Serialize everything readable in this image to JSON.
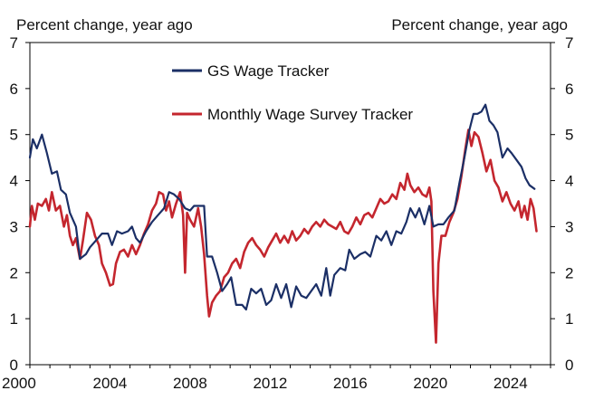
{
  "chart_data": {
    "type": "line",
    "ylabel_left": "Percent change, year ago",
    "ylabel_right": "Percent change, year ago",
    "xlim": [
      2000,
      2026
    ],
    "ylim": [
      0,
      7
    ],
    "xticks": [
      2000,
      2004,
      2008,
      2012,
      2016,
      2020,
      2024
    ],
    "yticks": [
      0,
      1,
      2,
      3,
      4,
      5,
      6,
      7
    ],
    "grid": false,
    "legend_position": "top-left-inside",
    "series": [
      {
        "name": "GS Wage Tracker",
        "color": "#1b2f66",
        "points": [
          [
            2000.0,
            4.5
          ],
          [
            2000.15,
            4.9
          ],
          [
            2000.35,
            4.7
          ],
          [
            2000.6,
            5.0
          ],
          [
            2000.85,
            4.6
          ],
          [
            2001.1,
            4.15
          ],
          [
            2001.35,
            4.2
          ],
          [
            2001.55,
            3.8
          ],
          [
            2001.8,
            3.7
          ],
          [
            2002.0,
            3.3
          ],
          [
            2002.3,
            3.0
          ],
          [
            2002.5,
            2.3
          ],
          [
            2002.8,
            2.4
          ],
          [
            2003.0,
            2.55
          ],
          [
            2003.3,
            2.7
          ],
          [
            2003.6,
            2.85
          ],
          [
            2003.9,
            2.85
          ],
          [
            2004.1,
            2.6
          ],
          [
            2004.35,
            2.9
          ],
          [
            2004.6,
            2.85
          ],
          [
            2004.9,
            2.9
          ],
          [
            2005.1,
            3.0
          ],
          [
            2005.3,
            2.75
          ],
          [
            2005.5,
            2.65
          ],
          [
            2005.8,
            2.9
          ],
          [
            2006.1,
            3.1
          ],
          [
            2006.4,
            3.25
          ],
          [
            2006.7,
            3.4
          ],
          [
            2006.95,
            3.75
          ],
          [
            2007.2,
            3.7
          ],
          [
            2007.45,
            3.6
          ],
          [
            2007.75,
            3.4
          ],
          [
            2008.0,
            3.35
          ],
          [
            2008.2,
            3.45
          ],
          [
            2008.45,
            3.45
          ],
          [
            2008.7,
            3.45
          ],
          [
            2008.85,
            2.35
          ],
          [
            2009.1,
            2.35
          ],
          [
            2009.35,
            2.0
          ],
          [
            2009.6,
            1.6
          ],
          [
            2009.85,
            1.75
          ],
          [
            2010.05,
            1.9
          ],
          [
            2010.3,
            1.3
          ],
          [
            2010.6,
            1.3
          ],
          [
            2010.8,
            1.2
          ],
          [
            2011.05,
            1.65
          ],
          [
            2011.3,
            1.55
          ],
          [
            2011.55,
            1.65
          ],
          [
            2011.8,
            1.3
          ],
          [
            2012.05,
            1.4
          ],
          [
            2012.3,
            1.75
          ],
          [
            2012.55,
            1.45
          ],
          [
            2012.8,
            1.75
          ],
          [
            2013.05,
            1.25
          ],
          [
            2013.3,
            1.7
          ],
          [
            2013.55,
            1.5
          ],
          [
            2013.8,
            1.45
          ],
          [
            2014.05,
            1.6
          ],
          [
            2014.3,
            1.75
          ],
          [
            2014.55,
            1.5
          ],
          [
            2014.8,
            2.1
          ],
          [
            2015.0,
            1.5
          ],
          [
            2015.2,
            1.95
          ],
          [
            2015.5,
            2.1
          ],
          [
            2015.75,
            2.05
          ],
          [
            2015.95,
            2.5
          ],
          [
            2016.2,
            2.3
          ],
          [
            2016.5,
            2.4
          ],
          [
            2016.75,
            2.45
          ],
          [
            2017.0,
            2.35
          ],
          [
            2017.3,
            2.8
          ],
          [
            2017.55,
            2.7
          ],
          [
            2017.8,
            2.9
          ],
          [
            2018.05,
            2.6
          ],
          [
            2018.3,
            2.9
          ],
          [
            2018.55,
            2.85
          ],
          [
            2018.8,
            3.1
          ],
          [
            2019.0,
            3.4
          ],
          [
            2019.25,
            3.2
          ],
          [
            2019.45,
            3.4
          ],
          [
            2019.7,
            3.05
          ],
          [
            2019.95,
            3.45
          ],
          [
            2020.15,
            3.0
          ],
          [
            2020.4,
            3.05
          ],
          [
            2020.65,
            3.05
          ],
          [
            2020.9,
            3.2
          ],
          [
            2021.2,
            3.35
          ],
          [
            2021.45,
            3.95
          ],
          [
            2021.7,
            4.5
          ],
          [
            2021.95,
            5.1
          ],
          [
            2022.15,
            5.45
          ],
          [
            2022.35,
            5.45
          ],
          [
            2022.55,
            5.5
          ],
          [
            2022.75,
            5.65
          ],
          [
            2022.95,
            5.3
          ],
          [
            2023.15,
            5.2
          ],
          [
            2023.35,
            5.05
          ],
          [
            2023.6,
            4.5
          ],
          [
            2023.85,
            4.7
          ],
          [
            2024.05,
            4.6
          ],
          [
            2024.3,
            4.45
          ],
          [
            2024.55,
            4.3
          ],
          [
            2024.75,
            4.05
          ],
          [
            2024.95,
            3.9
          ],
          [
            2025.2,
            3.82
          ]
        ]
      },
      {
        "name": "Monthly Wage Survey Tracker",
        "color": "#c4262e",
        "points": [
          [
            2000.0,
            3.0
          ],
          [
            2000.1,
            3.45
          ],
          [
            2000.25,
            3.15
          ],
          [
            2000.4,
            3.5
          ],
          [
            2000.6,
            3.45
          ],
          [
            2000.8,
            3.6
          ],
          [
            2000.95,
            3.35
          ],
          [
            2001.1,
            3.75
          ],
          [
            2001.3,
            3.35
          ],
          [
            2001.5,
            3.45
          ],
          [
            2001.7,
            3.0
          ],
          [
            2001.85,
            3.25
          ],
          [
            2002.0,
            2.8
          ],
          [
            2002.15,
            2.6
          ],
          [
            2002.3,
            2.75
          ],
          [
            2002.5,
            2.3
          ],
          [
            2002.65,
            2.7
          ],
          [
            2002.85,
            3.3
          ],
          [
            2003.05,
            3.15
          ],
          [
            2003.25,
            2.8
          ],
          [
            2003.45,
            2.6
          ],
          [
            2003.6,
            2.2
          ],
          [
            2003.8,
            2.0
          ],
          [
            2004.0,
            1.72
          ],
          [
            2004.15,
            1.75
          ],
          [
            2004.3,
            2.2
          ],
          [
            2004.5,
            2.45
          ],
          [
            2004.7,
            2.5
          ],
          [
            2004.9,
            2.35
          ],
          [
            2005.1,
            2.6
          ],
          [
            2005.3,
            2.4
          ],
          [
            2005.5,
            2.6
          ],
          [
            2005.7,
            2.85
          ],
          [
            2005.9,
            3.05
          ],
          [
            2006.1,
            3.35
          ],
          [
            2006.3,
            3.5
          ],
          [
            2006.45,
            3.75
          ],
          [
            2006.65,
            3.7
          ],
          [
            2006.8,
            3.35
          ],
          [
            2006.95,
            3.55
          ],
          [
            2007.1,
            3.2
          ],
          [
            2007.3,
            3.5
          ],
          [
            2007.5,
            3.75
          ],
          [
            2007.65,
            3.25
          ],
          [
            2007.75,
            2.0
          ],
          [
            2007.85,
            3.3
          ],
          [
            2008.0,
            3.15
          ],
          [
            2008.2,
            3.0
          ],
          [
            2008.4,
            3.4
          ],
          [
            2008.55,
            3.0
          ],
          [
            2008.7,
            2.4
          ],
          [
            2008.85,
            1.5
          ],
          [
            2008.95,
            1.05
          ],
          [
            2009.1,
            1.35
          ],
          [
            2009.3,
            1.5
          ],
          [
            2009.5,
            1.6
          ],
          [
            2009.7,
            1.9
          ],
          [
            2009.9,
            2.0
          ],
          [
            2010.1,
            2.2
          ],
          [
            2010.3,
            2.3
          ],
          [
            2010.5,
            2.1
          ],
          [
            2010.7,
            2.45
          ],
          [
            2010.9,
            2.65
          ],
          [
            2011.1,
            2.75
          ],
          [
            2011.3,
            2.6
          ],
          [
            2011.5,
            2.5
          ],
          [
            2011.7,
            2.35
          ],
          [
            2011.9,
            2.55
          ],
          [
            2012.1,
            2.7
          ],
          [
            2012.3,
            2.85
          ],
          [
            2012.5,
            2.65
          ],
          [
            2012.7,
            2.8
          ],
          [
            2012.9,
            2.65
          ],
          [
            2013.1,
            2.9
          ],
          [
            2013.3,
            2.7
          ],
          [
            2013.5,
            2.8
          ],
          [
            2013.7,
            2.95
          ],
          [
            2013.9,
            2.85
          ],
          [
            2014.1,
            3.0
          ],
          [
            2014.3,
            3.1
          ],
          [
            2014.5,
            3.0
          ],
          [
            2014.7,
            3.15
          ],
          [
            2014.9,
            3.05
          ],
          [
            2015.1,
            3.0
          ],
          [
            2015.3,
            2.95
          ],
          [
            2015.5,
            3.1
          ],
          [
            2015.7,
            2.9
          ],
          [
            2015.9,
            2.85
          ],
          [
            2016.1,
            3.0
          ],
          [
            2016.3,
            3.2
          ],
          [
            2016.5,
            3.05
          ],
          [
            2016.7,
            3.25
          ],
          [
            2016.9,
            3.3
          ],
          [
            2017.1,
            3.2
          ],
          [
            2017.3,
            3.4
          ],
          [
            2017.5,
            3.6
          ],
          [
            2017.7,
            3.5
          ],
          [
            2017.9,
            3.55
          ],
          [
            2018.1,
            3.7
          ],
          [
            2018.3,
            3.6
          ],
          [
            2018.5,
            3.95
          ],
          [
            2018.7,
            3.8
          ],
          [
            2018.85,
            4.15
          ],
          [
            2019.0,
            3.9
          ],
          [
            2019.2,
            3.75
          ],
          [
            2019.4,
            3.85
          ],
          [
            2019.6,
            3.7
          ],
          [
            2019.8,
            3.65
          ],
          [
            2019.95,
            3.85
          ],
          [
            2020.05,
            3.55
          ],
          [
            2020.15,
            1.6
          ],
          [
            2020.28,
            0.48
          ],
          [
            2020.4,
            2.2
          ],
          [
            2020.55,
            2.8
          ],
          [
            2020.75,
            2.8
          ],
          [
            2020.95,
            3.1
          ],
          [
            2021.15,
            3.3
          ],
          [
            2021.35,
            3.6
          ],
          [
            2021.55,
            4.1
          ],
          [
            2021.75,
            4.7
          ],
          [
            2021.9,
            5.1
          ],
          [
            2022.05,
            4.75
          ],
          [
            2022.2,
            5.05
          ],
          [
            2022.4,
            4.95
          ],
          [
            2022.6,
            4.6
          ],
          [
            2022.8,
            4.2
          ],
          [
            2023.0,
            4.45
          ],
          [
            2023.2,
            4.0
          ],
          [
            2023.4,
            3.85
          ],
          [
            2023.6,
            3.55
          ],
          [
            2023.8,
            3.75
          ],
          [
            2024.0,
            3.5
          ],
          [
            2024.2,
            3.35
          ],
          [
            2024.4,
            3.55
          ],
          [
            2024.55,
            3.2
          ],
          [
            2024.7,
            3.45
          ],
          [
            2024.85,
            3.15
          ],
          [
            2025.0,
            3.6
          ],
          [
            2025.15,
            3.4
          ],
          [
            2025.3,
            2.9
          ]
        ]
      }
    ]
  }
}
